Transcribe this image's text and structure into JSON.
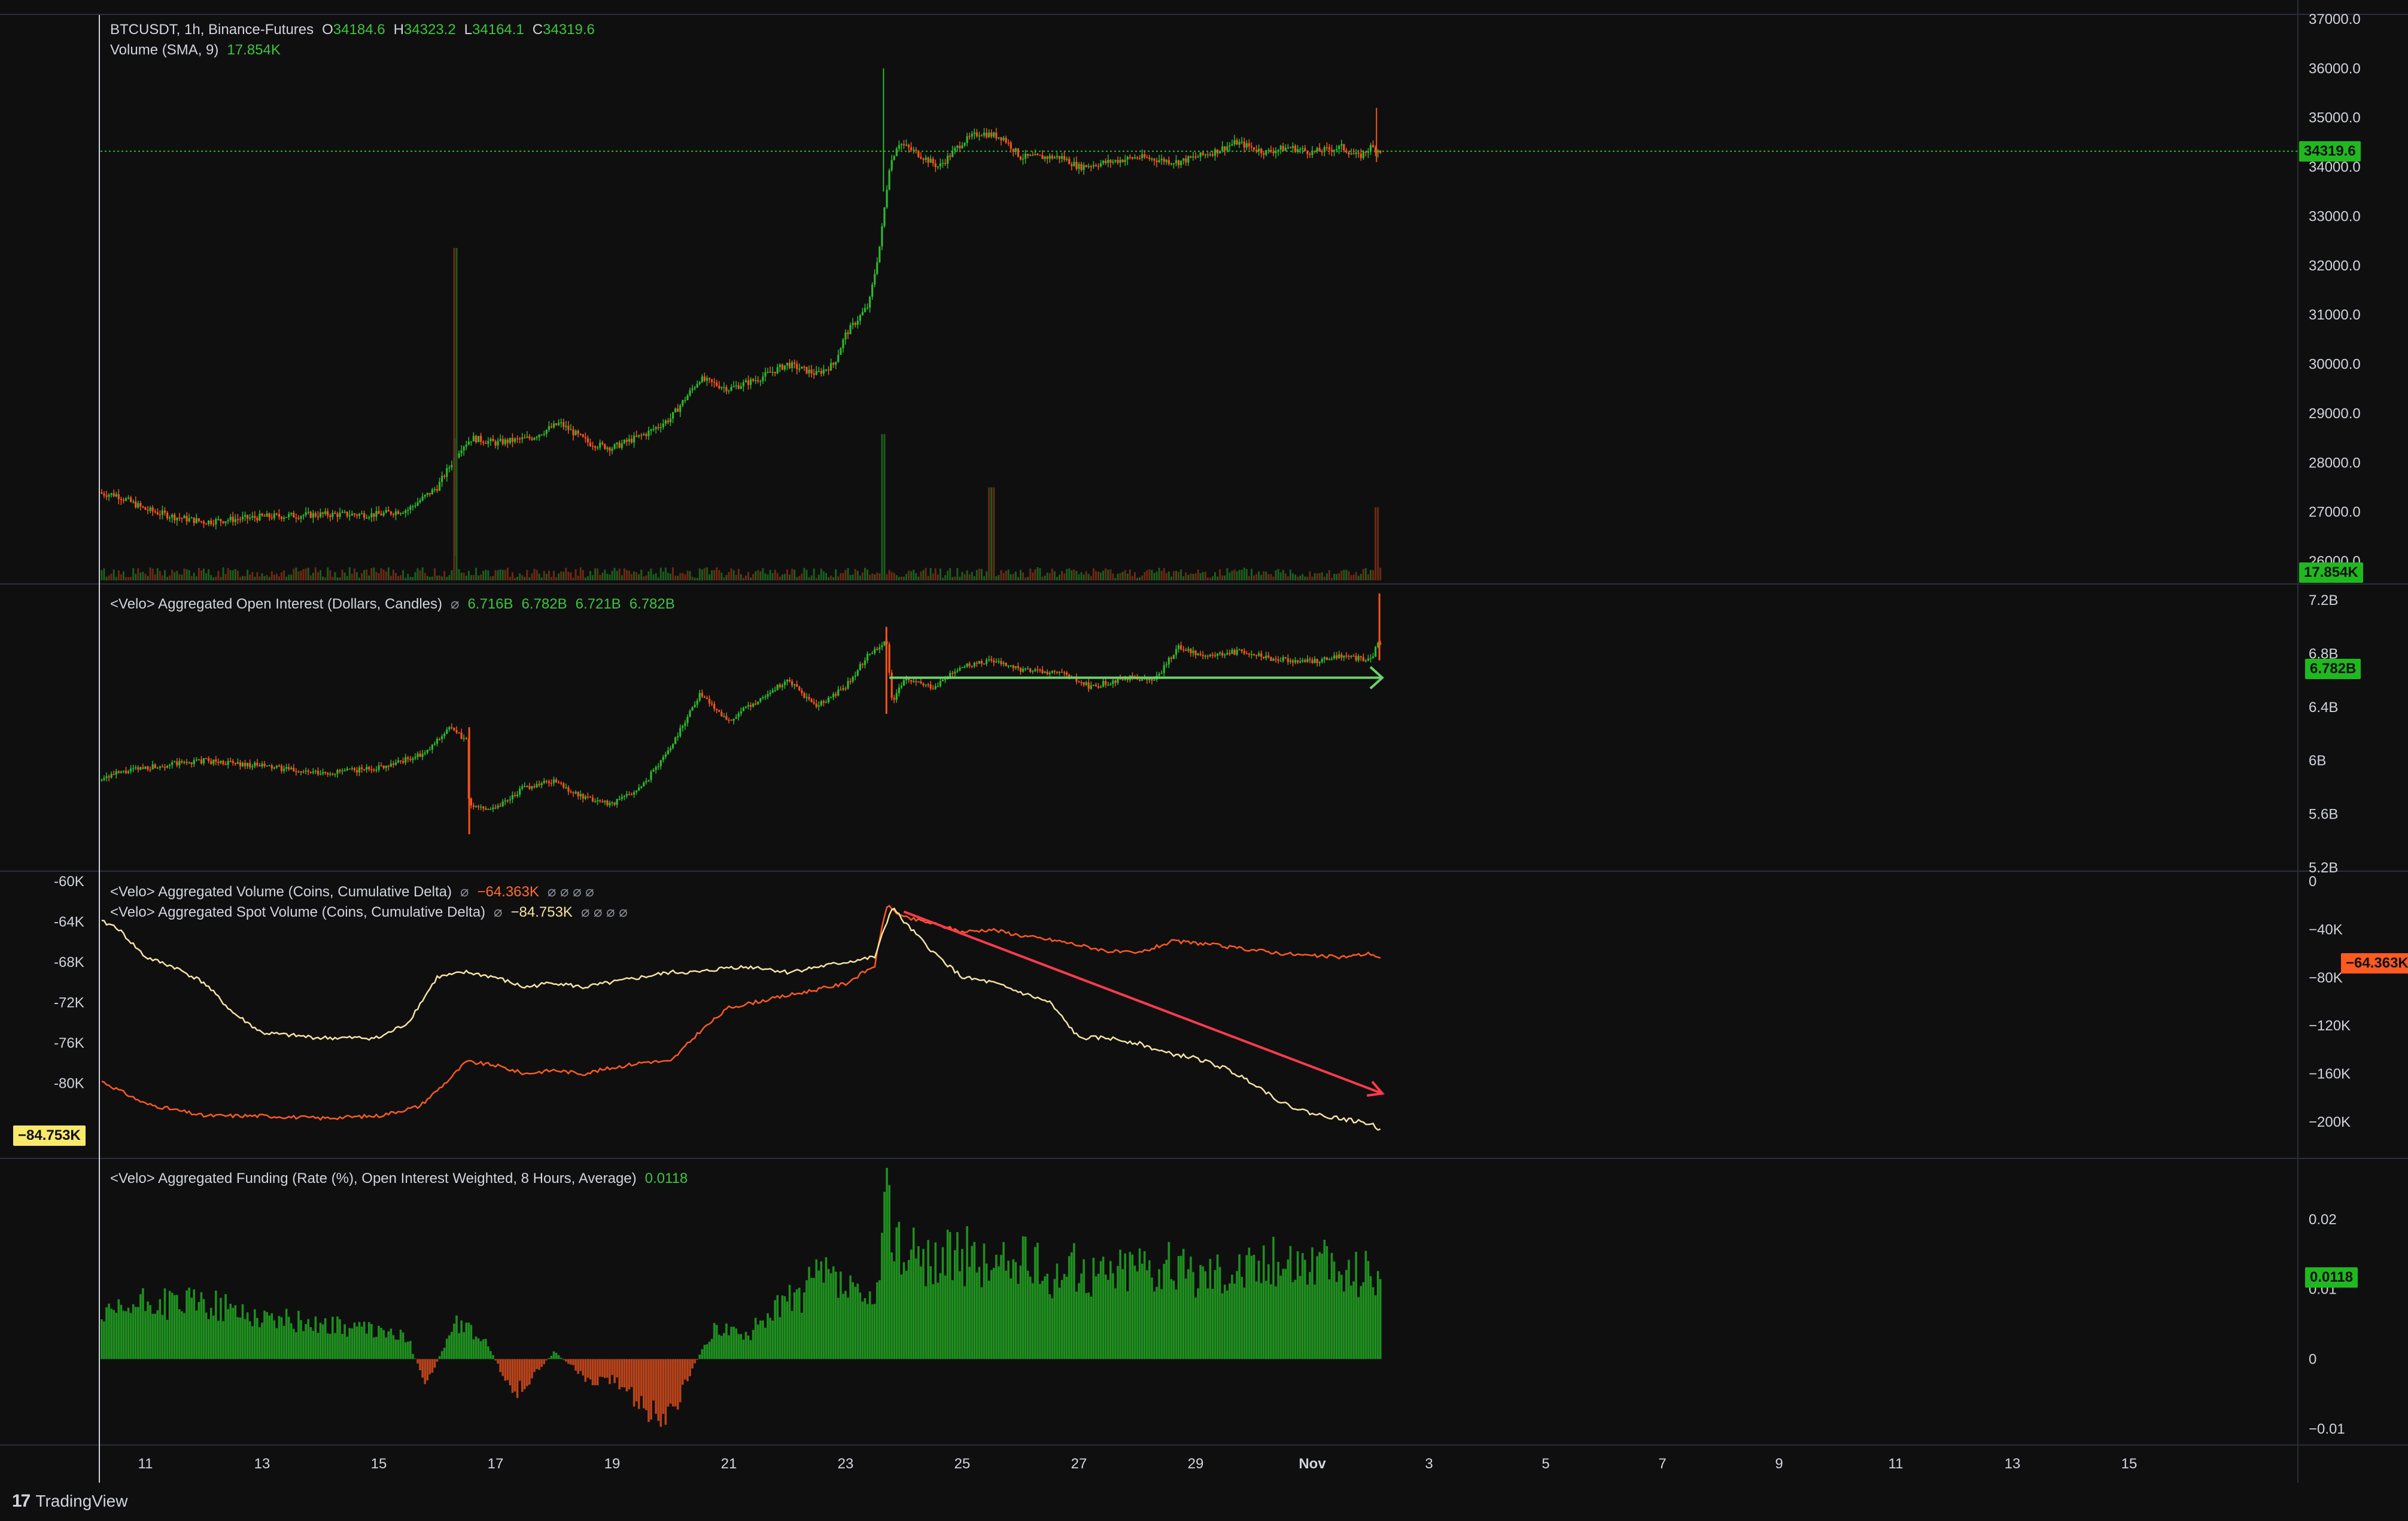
{
  "legend": {
    "main": {
      "symbol": "BTCUSDT, 1h, Binance-Futures",
      "o_label": "O",
      "o_val": "34184.6",
      "h_label": "H",
      "h_val": "34323.2",
      "l_label": "L",
      "l_val": "34164.1",
      "c_label": "C",
      "c_val": "34319.6"
    },
    "volume": {
      "name": "Volume (SMA, 9)",
      "value": "17.854K"
    },
    "oi": {
      "name": "<Velo> Aggregated Open Interest (Dollars, Candles)",
      "sym": "⌀",
      "values": [
        "6.716B",
        "6.782B",
        "6.721B",
        "6.782B"
      ]
    },
    "cvd": {
      "name": "<Velo> Aggregated Volume (Coins, Cumulative Delta)",
      "sym": "⌀",
      "value": "−64.363K",
      "extra": "⌀ ⌀ ⌀ ⌀"
    },
    "spot": {
      "name": "<Velo> Aggregated Spot Volume (Coins, Cumulative Delta)",
      "sym": "⌀",
      "value": "−84.753K",
      "extra": "⌀ ⌀ ⌀ ⌀"
    },
    "funding": {
      "name": "<Velo> Aggregated Funding (Rate (%), Open Interest Weighted, 8 Hours, Average)",
      "value": "0.0118"
    }
  },
  "tags": {
    "price": "34319.6",
    "volume": "17.854K",
    "oi": "6.782B",
    "cvd": "−64.363K",
    "spot": "−84.753K",
    "funding": "0.0118"
  },
  "branding": {
    "logo_mark": "17",
    "name": "TradingView"
  },
  "colors": {
    "background": "#0f0f10",
    "up": "#2eb82e",
    "down": "#f7531c",
    "cvd_line": "#ff5a1f",
    "spot_line": "#f4e3a1",
    "arrow_red": "#ff3b4e",
    "arrow_green": "#6bd26b",
    "grid_border": "#2a2e39",
    "tag_green": "#1fb91f",
    "tag_orange": "#ff5a1f",
    "tag_yellow": "#f9e96b"
  },
  "chart_data": [
    {
      "type": "candlestick",
      "title": "BTCUSDT, 1h, Binance-Futures",
      "x_ticks": [
        "11",
        "13",
        "15",
        "17",
        "19",
        "21",
        "23",
        "25",
        "27",
        "29",
        "Nov",
        "3",
        "5",
        "7",
        "9",
        "11",
        "13",
        "15"
      ],
      "y_ticks": [
        "37000.0",
        "36000.0",
        "35000.0",
        "34000.0",
        "33000.0",
        "32000.0",
        "31000.0",
        "30000.0",
        "29000.0",
        "28000.0",
        "27000.0",
        "26000.0"
      ],
      "ylim": [
        26000,
        37000
      ],
      "x_range_days": [
        10.5,
        32.2
      ],
      "last_price": 34319.6,
      "price_path": [
        [
          10.0,
          27400
        ],
        [
          10.5,
          27350
        ],
        [
          11.0,
          27050
        ],
        [
          11.5,
          26900
        ],
        [
          12.0,
          26800
        ],
        [
          13.0,
          26900
        ],
        [
          14.0,
          26950
        ],
        [
          15.0,
          26950
        ],
        [
          15.5,
          27050
        ],
        [
          16.0,
          27500
        ],
        [
          16.3,
          28100
        ],
        [
          16.4,
          28300
        ],
        [
          16.6,
          28500
        ],
        [
          17.0,
          28400
        ],
        [
          17.6,
          28500
        ],
        [
          18.1,
          28800
        ],
        [
          18.6,
          28400
        ],
        [
          19.0,
          28300
        ],
        [
          19.6,
          28600
        ],
        [
          20.0,
          28900
        ],
        [
          20.5,
          29700
        ],
        [
          21.0,
          29500
        ],
        [
          21.5,
          29700
        ],
        [
          22.0,
          30000
        ],
        [
          22.5,
          29800
        ],
        [
          22.8,
          30000
        ],
        [
          23.0,
          30600
        ],
        [
          23.4,
          31200
        ],
        [
          23.6,
          32500
        ],
        [
          23.75,
          34000
        ],
        [
          23.9,
          34500
        ],
        [
          24.2,
          34300
        ],
        [
          24.6,
          34000
        ],
        [
          25.0,
          34500
        ],
        [
          25.3,
          34700
        ],
        [
          25.7,
          34600
        ],
        [
          26.0,
          34200
        ],
        [
          26.7,
          34200
        ],
        [
          27.0,
          34000
        ],
        [
          27.5,
          34100
        ],
        [
          28.0,
          34200
        ],
        [
          28.7,
          34100
        ],
        [
          29.3,
          34300
        ],
        [
          29.7,
          34500
        ],
        [
          30.2,
          34300
        ],
        [
          30.6,
          34400
        ],
        [
          31.0,
          34300
        ],
        [
          31.5,
          34400
        ],
        [
          31.8,
          34200
        ],
        [
          32.0,
          34400
        ],
        [
          32.2,
          34320
        ]
      ],
      "volume_spikes": [
        [
          16.3,
          5000
        ],
        [
          23.65,
          2200
        ],
        [
          25.5,
          1400
        ],
        [
          32.1,
          1100
        ]
      ]
    },
    {
      "type": "candlestick",
      "title": "<Velo> Aggregated Open Interest (Dollars, Candles)",
      "y_ticks": [
        "7.2B",
        "6.8B",
        "6.4B",
        "6B",
        "5.6B",
        "5.2B"
      ],
      "ylim": [
        5.2,
        7.3
      ],
      "last_value": 6.782,
      "oi_path": [
        [
          10.0,
          5.85
        ],
        [
          10.5,
          5.9
        ],
        [
          11.0,
          5.95
        ],
        [
          12.0,
          6.0
        ],
        [
          13.0,
          5.96
        ],
        [
          14.0,
          5.9
        ],
        [
          15.0,
          5.95
        ],
        [
          15.8,
          6.05
        ],
        [
          16.2,
          6.25
        ],
        [
          16.5,
          6.15
        ],
        [
          16.55,
          5.65
        ],
        [
          17.0,
          5.65
        ],
        [
          17.5,
          5.8
        ],
        [
          18.0,
          5.85
        ],
        [
          18.5,
          5.72
        ],
        [
          19.0,
          5.68
        ],
        [
          19.5,
          5.8
        ],
        [
          20.0,
          6.1
        ],
        [
          20.5,
          6.5
        ],
        [
          21.0,
          6.3
        ],
        [
          21.5,
          6.45
        ],
        [
          22.0,
          6.6
        ],
        [
          22.5,
          6.4
        ],
        [
          23.0,
          6.55
        ],
        [
          23.4,
          6.8
        ],
        [
          23.7,
          6.9
        ],
        [
          23.8,
          6.45
        ],
        [
          24.0,
          6.6
        ],
        [
          24.5,
          6.55
        ],
        [
          25.0,
          6.7
        ],
        [
          25.5,
          6.75
        ],
        [
          26.0,
          6.68
        ],
        [
          26.7,
          6.65
        ],
        [
          27.2,
          6.55
        ],
        [
          27.8,
          6.62
        ],
        [
          28.3,
          6.6
        ],
        [
          28.7,
          6.85
        ],
        [
          29.2,
          6.78
        ],
        [
          29.8,
          6.82
        ],
        [
          30.3,
          6.76
        ],
        [
          31.0,
          6.74
        ],
        [
          31.5,
          6.78
        ],
        [
          32.0,
          6.75
        ],
        [
          32.15,
          6.9
        ],
        [
          32.2,
          6.78
        ]
      ],
      "annotation": {
        "type": "arrow",
        "from": [
          23.75,
          6.62
        ],
        "to": [
          32.2,
          6.62
        ]
      }
    },
    {
      "type": "line",
      "series": [
        {
          "name": "<Velo> Aggregated Volume (Coins, Cumulative Delta)",
          "axis": "right",
          "points": [
            [
              10.0,
              -160
            ],
            [
              11.0,
              -185
            ],
            [
              12.0,
              -195
            ],
            [
              13.0,
              -195
            ],
            [
              14.0,
              -197
            ],
            [
              15.0,
              -195
            ],
            [
              15.7,
              -187
            ],
            [
              16.2,
              -165
            ],
            [
              16.5,
              -150
            ],
            [
              17.0,
              -153
            ],
            [
              17.5,
              -160
            ],
            [
              18.0,
              -157
            ],
            [
              18.5,
              -160
            ],
            [
              19.0,
              -155
            ],
            [
              19.6,
              -150
            ],
            [
              20.0,
              -150
            ],
            [
              20.5,
              -125
            ],
            [
              21.0,
              -105
            ],
            [
              21.5,
              -100
            ],
            [
              22.0,
              -95
            ],
            [
              22.5,
              -90
            ],
            [
              23.0,
              -85
            ],
            [
              23.5,
              -70
            ],
            [
              23.7,
              -20
            ],
            [
              24.0,
              -30
            ],
            [
              24.5,
              -35
            ],
            [
              25.0,
              -42
            ],
            [
              25.5,
              -40
            ],
            [
              26.0,
              -45
            ],
            [
              26.7,
              -50
            ],
            [
              27.5,
              -58
            ],
            [
              28.0,
              -60
            ],
            [
              28.6,
              -50
            ],
            [
              29.2,
              -52
            ],
            [
              29.6,
              -55
            ],
            [
              30.0,
              -57
            ],
            [
              30.5,
              -60
            ],
            [
              31.0,
              -62
            ],
            [
              31.5,
              -63
            ],
            [
              32.0,
              -60
            ],
            [
              32.2,
              -64.363
            ]
          ]
        },
        {
          "name": "<Velo> Aggregated Spot Volume (Coins, Cumulative Delta)",
          "axis": "left",
          "points": [
            [
              10.0,
              -63.5
            ],
            [
              10.5,
              -64.5
            ],
            [
              11.0,
              -67.5
            ],
            [
              11.5,
              -68.5
            ],
            [
              12.0,
              -70
            ],
            [
              12.5,
              -73
            ],
            [
              13.0,
              -75
            ],
            [
              14.0,
              -75.5
            ],
            [
              15.0,
              -75.5
            ],
            [
              15.5,
              -74
            ],
            [
              16.0,
              -69.5
            ],
            [
              16.5,
              -69
            ],
            [
              17.0,
              -69.5
            ],
            [
              17.5,
              -70.5
            ],
            [
              18.0,
              -70
            ],
            [
              18.5,
              -70.5
            ],
            [
              19.0,
              -70
            ],
            [
              19.5,
              -69.5
            ],
            [
              20.0,
              -69
            ],
            [
              20.5,
              -69
            ],
            [
              21.0,
              -68.5
            ],
            [
              21.5,
              -68.5
            ],
            [
              22.0,
              -69
            ],
            [
              22.5,
              -68.5
            ],
            [
              23.0,
              -68
            ],
            [
              23.5,
              -67.5
            ],
            [
              23.8,
              -62.5
            ],
            [
              24.0,
              -64
            ],
            [
              24.5,
              -67
            ],
            [
              25.0,
              -69.5
            ],
            [
              25.5,
              -70
            ],
            [
              26.0,
              -71
            ],
            [
              26.5,
              -72
            ],
            [
              27.0,
              -75.5
            ],
            [
              27.5,
              -75.5
            ],
            [
              28.0,
              -76
            ],
            [
              28.5,
              -77
            ],
            [
              29.0,
              -77.5
            ],
            [
              29.5,
              -78.5
            ],
            [
              30.0,
              -80
            ],
            [
              30.5,
              -82
            ],
            [
              31.0,
              -83
            ],
            [
              31.5,
              -83.5
            ],
            [
              32.0,
              -84
            ],
            [
              32.2,
              -84.753
            ]
          ]
        }
      ],
      "y_left_ticks": [
        "-60K",
        "-64K",
        "-68K",
        "-72K",
        "-76K",
        "-80K"
      ],
      "ylim_left": [
        -85,
        -60
      ],
      "y_right_ticks": [
        "0",
        "−40K",
        "−80K",
        "−120K",
        "−160K",
        "−200K"
      ],
      "ylim_right": [
        -210,
        0
      ],
      "annotation": {
        "type": "arrow",
        "from": [
          24.0,
          -63
        ],
        "to": [
          32.2,
          -81
        ]
      }
    },
    {
      "type": "bar",
      "title": "<Velo> Aggregated Funding (Rate (%), Open Interest Weighted, 8 Hours, Average)",
      "y_ticks": [
        "0.02",
        "0.01",
        "0",
        "−0.01"
      ],
      "ylim": [
        -0.0105,
        0.025
      ],
      "last_value": 0.0118,
      "funding_path": [
        [
          10.0,
          0.005
        ],
        [
          11.0,
          0.008
        ],
        [
          12.0,
          0.008
        ],
        [
          13.0,
          0.006
        ],
        [
          14.0,
          0.005
        ],
        [
          15.0,
          0.004
        ],
        [
          15.5,
          0.003
        ],
        [
          15.8,
          -0.004
        ],
        [
          16.3,
          0.005
        ],
        [
          16.8,
          0.003
        ],
        [
          17.3,
          -0.005
        ],
        [
          17.7,
          -0.002
        ],
        [
          18.0,
          0.001
        ],
        [
          18.6,
          -0.003
        ],
        [
          19.0,
          -0.003
        ],
        [
          19.5,
          -0.007
        ],
        [
          20.0,
          -0.008
        ],
        [
          20.4,
          -0.001
        ],
        [
          20.8,
          0.005
        ],
        [
          21.3,
          0.003
        ],
        [
          21.7,
          0.007
        ],
        [
          22.2,
          0.009
        ],
        [
          22.6,
          0.012
        ],
        [
          23.0,
          0.01
        ],
        [
          23.5,
          0.007
        ],
        [
          23.7,
          0.022
        ],
        [
          24.0,
          0.015
        ],
        [
          24.5,
          0.014
        ],
        [
          25.0,
          0.015
        ],
        [
          25.5,
          0.013
        ],
        [
          26.0,
          0.014
        ],
        [
          26.5,
          0.012
        ],
        [
          27.0,
          0.013
        ],
        [
          27.5,
          0.012
        ],
        [
          28.0,
          0.014
        ],
        [
          28.5,
          0.013
        ],
        [
          29.0,
          0.012
        ],
        [
          29.5,
          0.013
        ],
        [
          30.0,
          0.013
        ],
        [
          30.5,
          0.014
        ],
        [
          31.0,
          0.014
        ],
        [
          31.5,
          0.012
        ],
        [
          32.0,
          0.013
        ],
        [
          32.2,
          0.0118
        ]
      ]
    }
  ]
}
